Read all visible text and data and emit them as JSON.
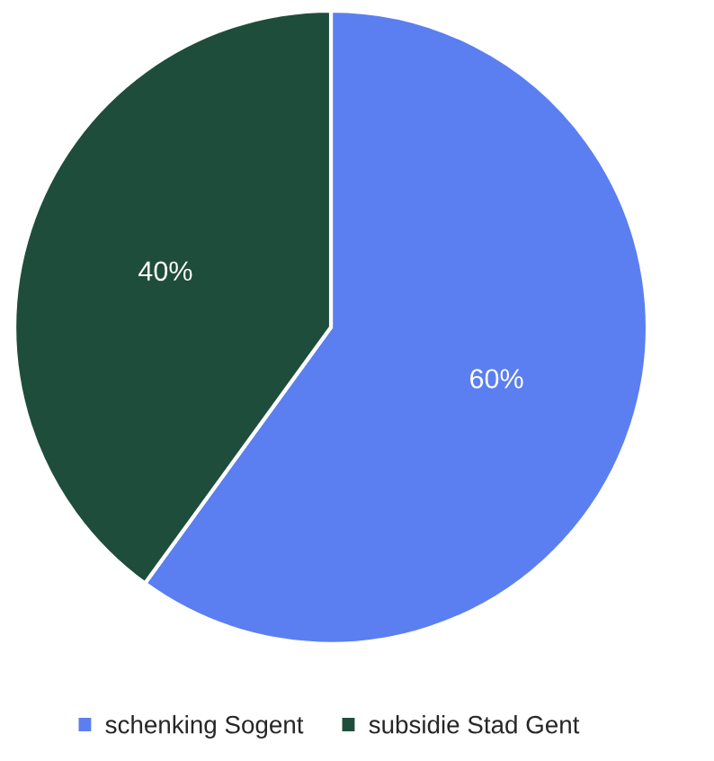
{
  "chart_data": {
    "type": "pie",
    "categories": [
      "schenking Sogent",
      "subsidie Stad Gent"
    ],
    "values": [
      60,
      40
    ],
    "value_labels": [
      "60%",
      "40%"
    ],
    "colors": [
      "#5b7ff0",
      "#1f4d3b"
    ],
    "legend": "bottom"
  }
}
